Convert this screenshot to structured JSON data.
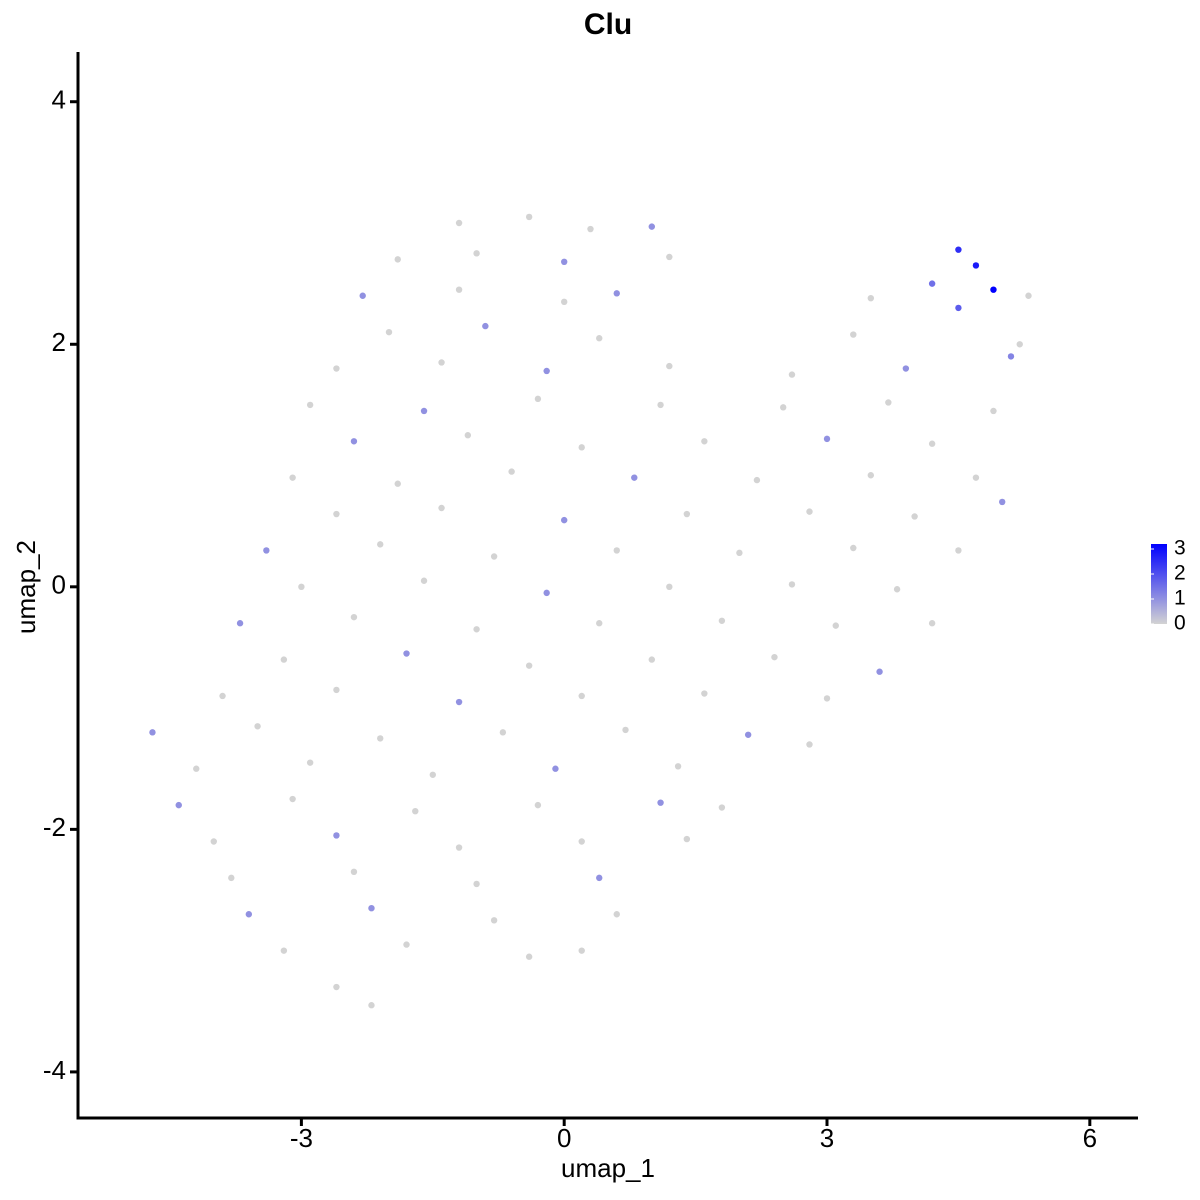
{
  "chart_data": {
    "type": "scatter",
    "title": "Clu",
    "x_label": "umap_1",
    "y_label": "umap_2",
    "xlim": [
      -5.55,
      6.55
    ],
    "ylim": [
      -4.38,
      4.41
    ],
    "xticks": [
      -3,
      0,
      3,
      6
    ],
    "yticks": [
      -4,
      -2,
      0,
      2,
      4
    ],
    "low_color": "#d3d3d3",
    "high_color": "#0000ff",
    "color_lim": [
      0,
      3.2
    ],
    "color_ticks": [
      0,
      1,
      2,
      3
    ],
    "x": [
      -1.2,
      -0.4,
      0.3,
      1.0,
      -1.9,
      -1.0,
      0,
      1.2,
      4.5,
      4.7,
      -2.3,
      -1.2,
      0,
      0.6,
      3.5,
      4.2,
      4.9,
      5.3,
      -2.0,
      -0.9,
      0.4,
      3.3,
      4.5,
      5.2,
      -2.6,
      -1.4,
      -0.2,
      1.2,
      2.6,
      3.9,
      5.1,
      -2.9,
      -1.6,
      -0.3,
      1.1,
      2.5,
      3.7,
      4.9,
      -2.4,
      -1.1,
      0.2,
      1.6,
      3.0,
      4.2,
      -3.1,
      -1.9,
      -0.6,
      0.8,
      2.2,
      3.5,
      4.7,
      -2.6,
      -1.4,
      0,
      1.4,
      2.8,
      4.0,
      5.0,
      -3.4,
      -2.1,
      -0.8,
      0.6,
      2.0,
      3.3,
      4.5,
      -3.0,
      -1.6,
      -0.2,
      1.2,
      2.6,
      3.8,
      -3.7,
      -2.4,
      -1.0,
      0.4,
      1.8,
      3.1,
      4.2,
      -3.2,
      -1.8,
      -0.4,
      1.0,
      2.4,
      3.6,
      -3.9,
      -2.6,
      -1.2,
      0.2,
      1.6,
      3.0,
      -4.7,
      -3.5,
      -2.1,
      -0.7,
      0.7,
      2.1,
      2.8,
      -4.2,
      -2.9,
      -1.5,
      -0.1,
      1.3,
      -4.4,
      -3.1,
      -1.7,
      -0.3,
      1.1,
      1.8,
      -4.0,
      -2.6,
      -1.2,
      0.2,
      1.4,
      -3.8,
      -2.4,
      -1.0,
      0.4,
      -3.6,
      -2.2,
      -0.8,
      0.6,
      -3.2,
      -1.8,
      -0.4,
      0.2,
      -2.6,
      -2.2
    ],
    "y": [
      3.0,
      3.05,
      2.95,
      2.97,
      2.7,
      2.75,
      2.68,
      2.72,
      2.78,
      2.65,
      2.4,
      2.45,
      2.35,
      2.42,
      2.38,
      2.5,
      2.45,
      2.4,
      2.1,
      2.15,
      2.05,
      2.08,
      2.3,
      2.0,
      1.8,
      1.85,
      1.78,
      1.82,
      1.75,
      1.8,
      1.9,
      1.5,
      1.45,
      1.55,
      1.5,
      1.48,
      1.52,
      1.45,
      1.2,
      1.25,
      1.15,
      1.2,
      1.22,
      1.18,
      0.9,
      0.85,
      0.95,
      0.9,
      0.88,
      0.92,
      0.9,
      0.6,
      0.65,
      0.55,
      0.6,
      0.62,
      0.58,
      0.7,
      0.3,
      0.35,
      0.25,
      0.3,
      0.28,
      0.32,
      0.3,
      0,
      0.05,
      -0.05,
      0,
      0.02,
      -0.02,
      -0.3,
      -0.25,
      -0.35,
      -0.3,
      -0.28,
      -0.32,
      -0.3,
      -0.6,
      -0.55,
      -0.65,
      -0.6,
      -0.58,
      -0.7,
      -0.9,
      -0.85,
      -0.95,
      -0.9,
      -0.88,
      -0.92,
      -1.2,
      -1.15,
      -1.25,
      -1.2,
      -1.18,
      -1.22,
      -1.3,
      -1.5,
      -1.45,
      -1.55,
      -1.5,
      -1.48,
      -1.8,
      -1.75,
      -1.85,
      -1.8,
      -1.78,
      -1.82,
      -2.1,
      -2.05,
      -2.15,
      -2.1,
      -2.08,
      -2.4,
      -2.35,
      -2.45,
      -2.4,
      -2.7,
      -2.65,
      -2.75,
      -2.7,
      -3.0,
      -2.95,
      -3.05,
      -3.0,
      -3.3,
      -3.45
    ],
    "values": [
      0,
      0,
      0,
      1,
      0,
      0,
      1,
      0,
      2.5,
      2.8,
      1,
      0,
      0,
      1,
      0,
      1.5,
      3.2,
      0,
      0,
      1,
      0,
      0,
      1.8,
      0,
      0,
      0,
      1,
      0,
      0,
      1,
      1.2,
      0,
      1,
      0,
      0,
      0,
      0,
      0,
      1,
      0,
      0,
      0,
      1,
      0,
      0,
      0,
      0,
      1,
      0,
      0,
      0,
      0,
      0,
      1,
      0,
      0,
      0,
      1,
      1,
      0,
      0,
      0,
      0,
      0,
      0,
      0,
      0,
      1,
      0,
      0,
      0,
      1,
      0,
      0,
      0,
      0,
      0,
      0,
      0,
      1,
      0,
      0,
      0,
      1,
      0,
      0,
      1,
      0,
      0,
      0,
      1,
      0,
      0,
      0,
      0,
      1,
      0,
      0,
      0,
      0,
      1,
      0,
      1,
      0,
      0,
      0,
      1,
      0,
      0,
      1,
      0,
      0,
      0,
      0,
      0,
      0,
      1,
      1,
      1,
      0,
      0,
      0,
      0,
      0,
      0,
      0,
      0
    ]
  }
}
